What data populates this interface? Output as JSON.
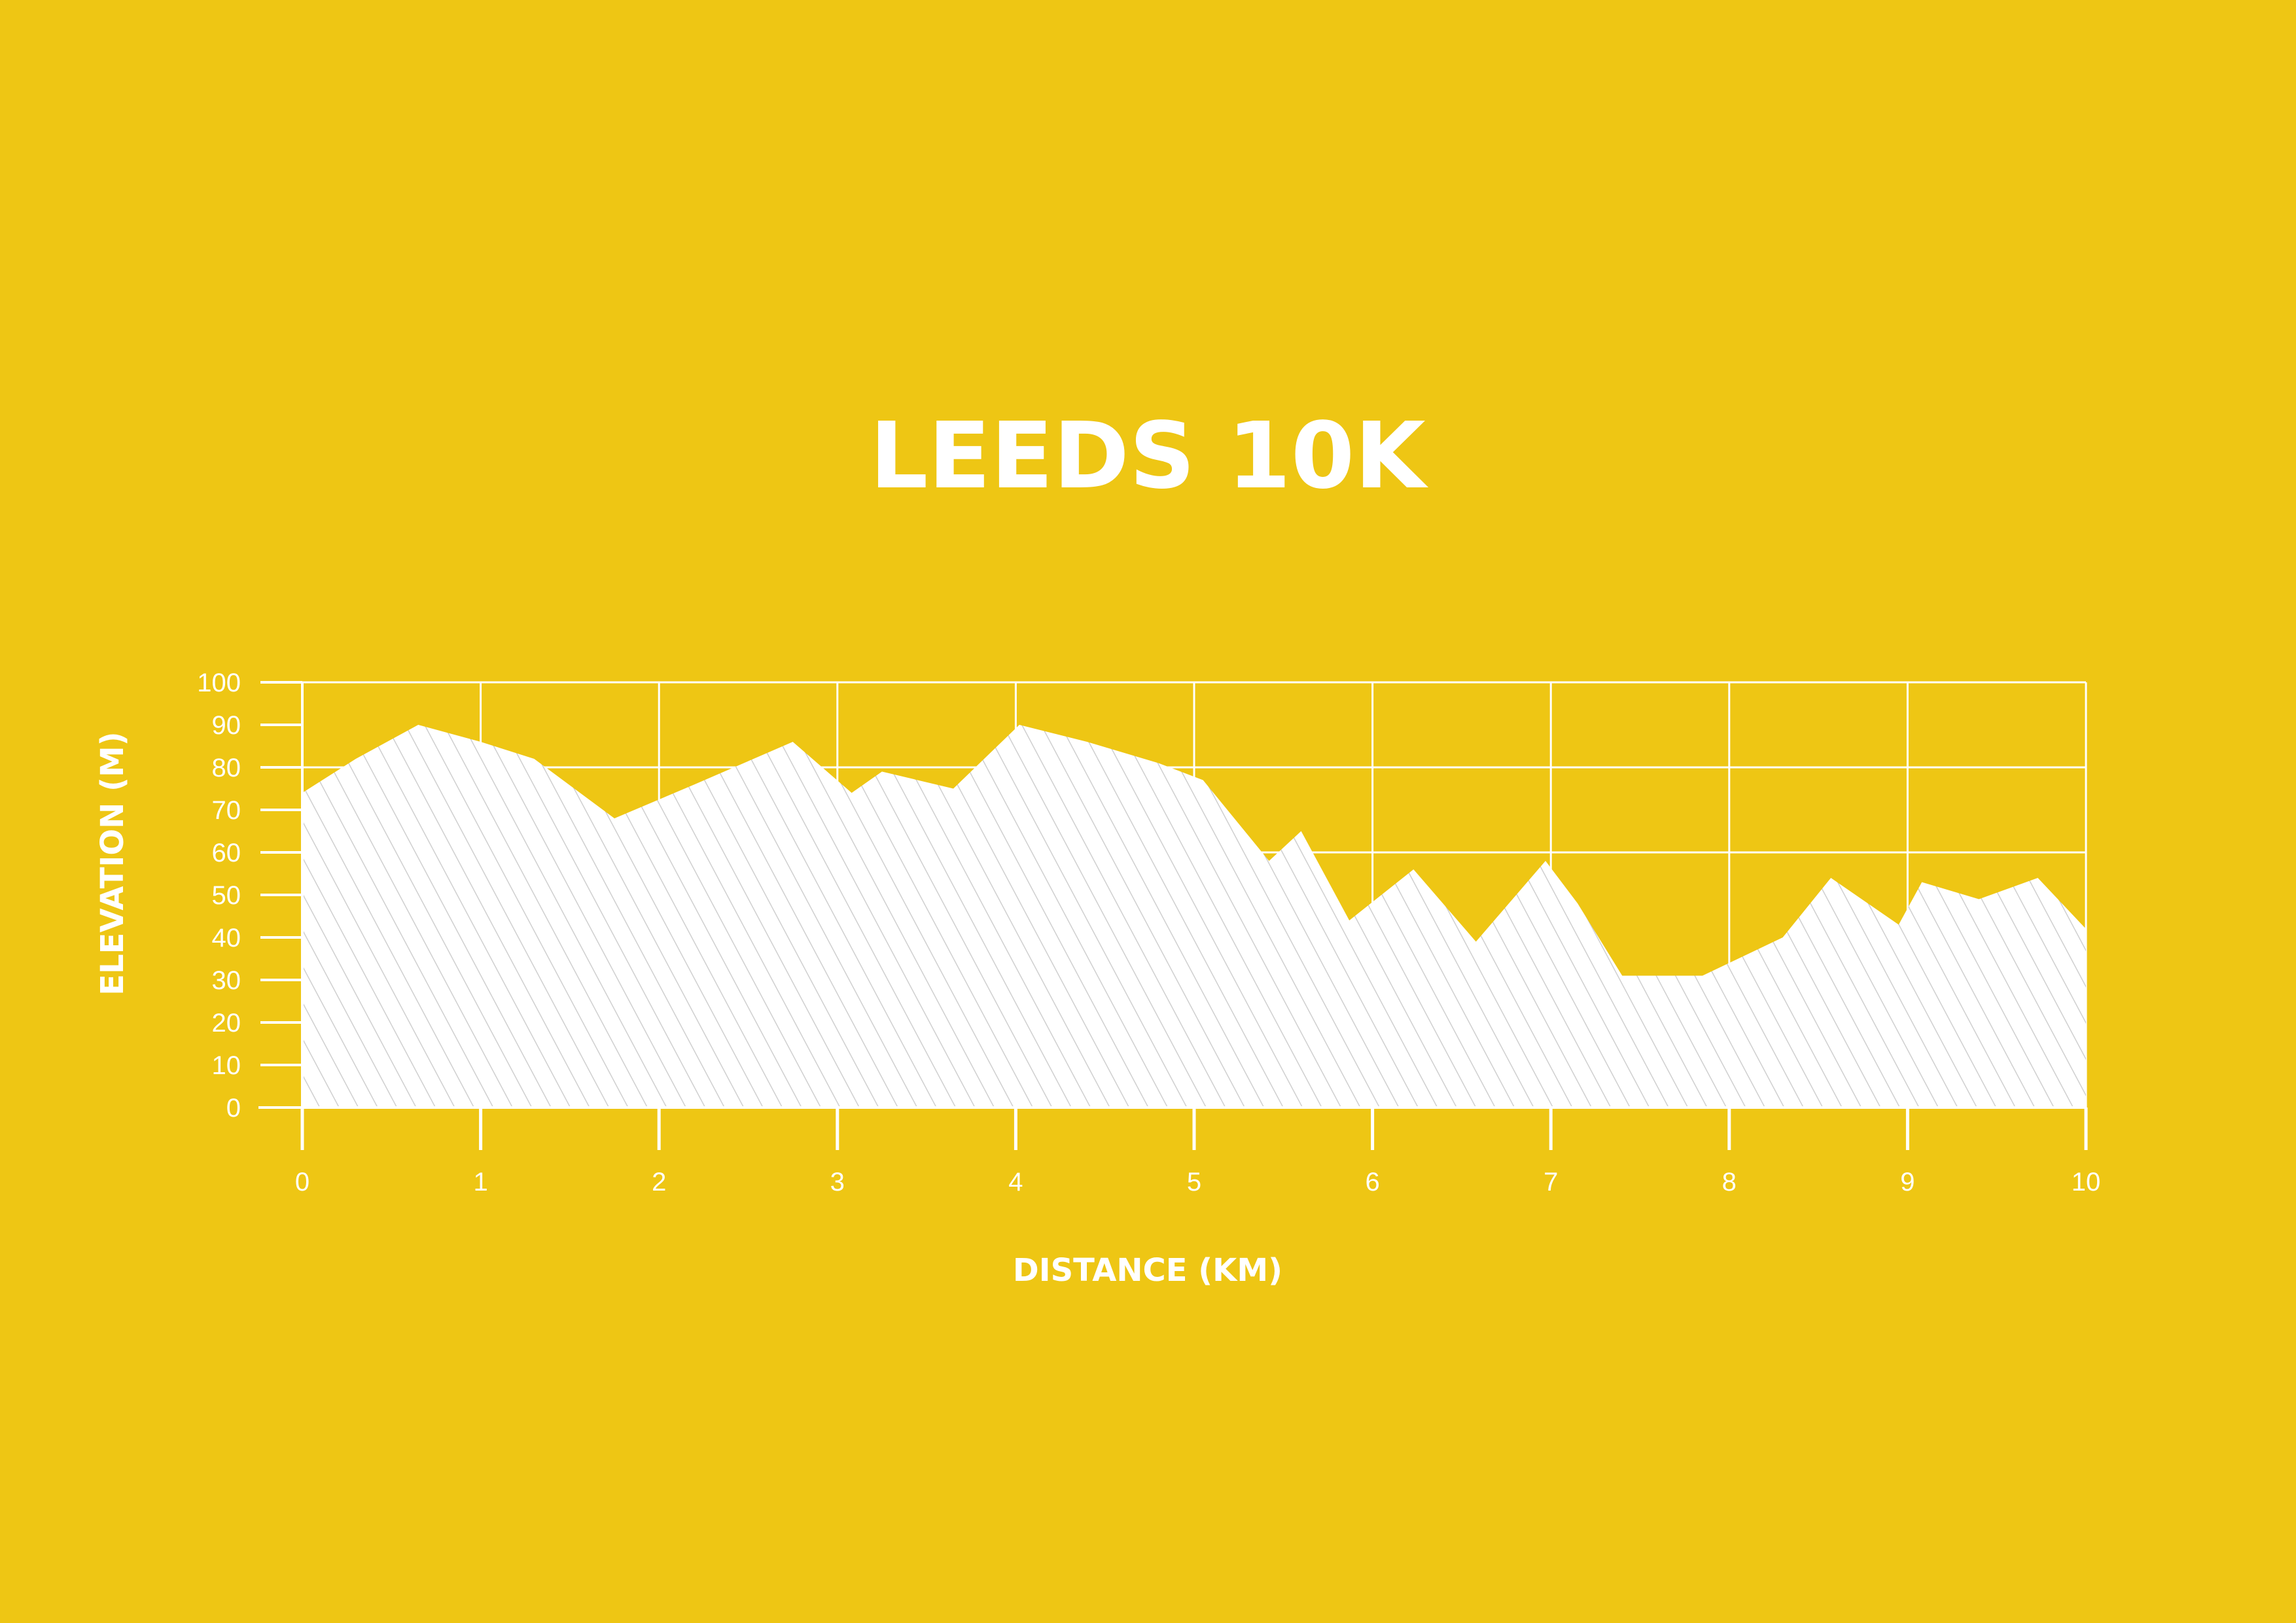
{
  "chart_data": {
    "type": "area",
    "title": "LEEDS 10K",
    "xlabel": "DISTANCE (KM)",
    "ylabel": "ELEVATION (M)",
    "xlim": [
      0,
      10
    ],
    "ylim": [
      0,
      100
    ],
    "x_ticks": [
      "0",
      "1",
      "2",
      "3",
      "4",
      "5",
      "6",
      "7",
      "8",
      "9",
      "10"
    ],
    "y_ticks": [
      "0",
      "10",
      "20",
      "30",
      "40",
      "50",
      "60",
      "70",
      "80",
      "90",
      "100"
    ],
    "grid": true,
    "legend": "none",
    "series": [
      {
        "x": [
          0,
          0.3,
          0.65,
          1.0,
          1.3,
          1.75,
          2.2,
          2.75,
          3.08,
          3.25,
          3.65,
          4.02,
          4.4,
          4.8,
          5.05,
          5.42,
          5.6,
          5.87,
          6.23,
          6.58,
          6.97,
          7.15,
          7.4,
          7.85,
          8.3,
          8.57,
          8.95,
          9.08,
          9.4,
          9.73,
          10.0
        ],
        "y": [
          74,
          82,
          90,
          86,
          82,
          68,
          76,
          86,
          74,
          79,
          75,
          90,
          86,
          81,
          77,
          58,
          65,
          44,
          56,
          39,
          58,
          48,
          31,
          31,
          40,
          54,
          43,
          53,
          49,
          54,
          42
        ]
      }
    ],
    "colors": {
      "background": "#EEC614",
      "foreground": "#FFFFFF",
      "hatch": "#CFCFCF"
    }
  }
}
